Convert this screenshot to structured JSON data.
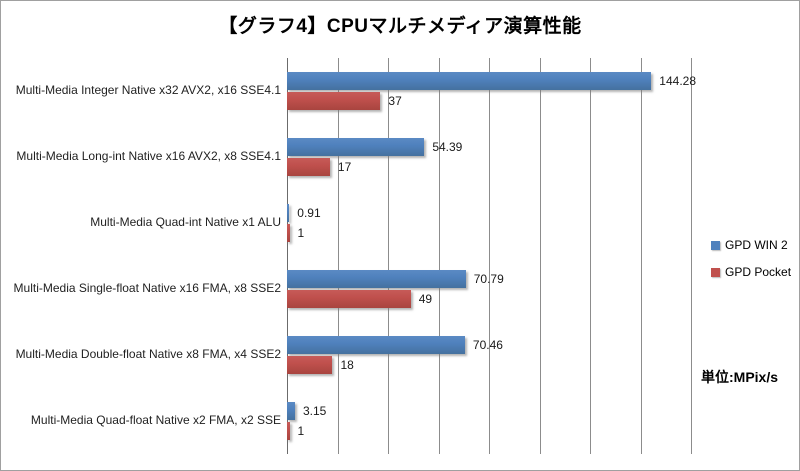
{
  "chart_data": {
    "type": "bar",
    "orientation": "horizontal",
    "title": "【グラフ4】CPUマルチメディア演算性能",
    "unit_label": "単位:MPix/s",
    "categories": [
      "Multi-Media Integer Native x32 AVX2, x16 SSE4.1",
      "Multi-Media Long-int Native x16 AVX2, x8 SSE4.1",
      "Multi-Media Quad-int Native x1 ALU",
      "Multi-Media Single-float Native x16 FMA, x8 SSE2",
      "Multi-Media Double-float Native x8 FMA, x4 SSE2",
      "Multi-Media Quad-float Native x2 FMA, x2 SSE"
    ],
    "series": [
      {
        "name": "GPD WIN 2",
        "color": "#4F81BD",
        "values": [
          144.28,
          54.39,
          0.91,
          70.79,
          70.46,
          3.15
        ]
      },
      {
        "name": "GPD Pocket",
        "color": "#C0504D",
        "values": [
          37,
          17,
          1,
          49,
          18,
          1
        ]
      }
    ],
    "xlim": [
      0,
      160
    ],
    "grid_interval": 20,
    "grid": true,
    "x_tick_labels_visible": false,
    "legend_position": "right",
    "data_labels_visible": true
  }
}
